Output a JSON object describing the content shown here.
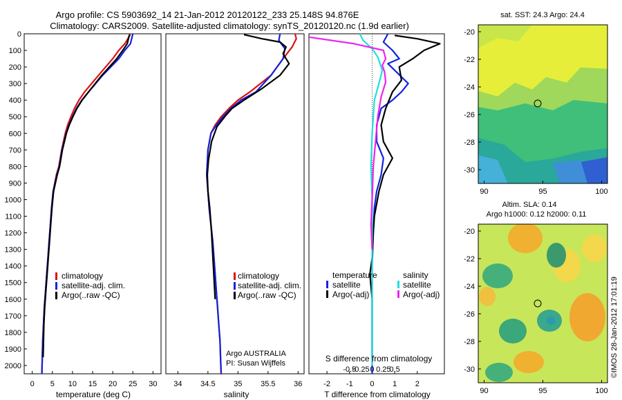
{
  "figure": {
    "title_line1": "Argo profile: CS 5903692_14 21-Jan-2012 20120122_233 25.148S 94.876E",
    "title_line2": "Climatology: CARS2009. Satellite-adjusted climatology: synTS_20120120.nc (1.9d earlier)",
    "credit": "©IMOS 28-Jan-2012 17:01:19"
  },
  "colors": {
    "climatology": "#dd1111",
    "satellite": "#1122dd",
    "argo": "#000000",
    "sal_satellite": "#22dddd",
    "sal_argo": "#ee22ee"
  },
  "depth_axis": {
    "range": [
      0,
      2050
    ],
    "ticks": [
      0,
      100,
      200,
      300,
      400,
      500,
      600,
      700,
      800,
      900,
      1000,
      1100,
      1200,
      1300,
      1400,
      1500,
      1600,
      1700,
      1800,
      1900,
      2000
    ]
  },
  "chart_data": [
    {
      "type": "line",
      "xlabel": "temperature (deg C)",
      "xlim": [
        -2,
        32
      ],
      "ylim": [
        2050,
        0
      ],
      "xticks": [
        0,
        5,
        10,
        15,
        20,
        25,
        30
      ],
      "legend": [
        "climatology",
        "satellite-adj. clim.",
        "Argo(..raw -QC)"
      ],
      "series": [
        {
          "name": "climatology",
          "color": "#dd1111",
          "x": [
            24.2,
            24.0,
            23.0,
            21.5,
            20.0,
            16.5,
            13.0,
            11.6,
            10.5,
            9.6,
            8.8,
            8.2,
            7.3,
            6.6,
            6.0,
            5.2,
            4.8,
            4.5,
            4.2,
            3.9,
            3.6,
            3.3,
            3.0,
            2.8,
            2.6,
            2.4
          ],
          "y": [
            0,
            20,
            60,
            100,
            150,
            250,
            350,
            400,
            450,
            500,
            550,
            600,
            700,
            800,
            850,
            950,
            1050,
            1150,
            1250,
            1350,
            1450,
            1550,
            1650,
            1750,
            1850,
            2050
          ]
        },
        {
          "name": "satellite-adj. clim.",
          "color": "#1122dd",
          "x": [
            25.0,
            24.8,
            24.4,
            23.0,
            21.5,
            17.5,
            14.0,
            12.3,
            11.0,
            10.0,
            9.1,
            8.4,
            7.4,
            6.7,
            6.1,
            5.2,
            4.8,
            4.5,
            4.2,
            3.9,
            3.6,
            3.3,
            3.0,
            2.8,
            2.6,
            2.4
          ],
          "y": [
            0,
            20,
            60,
            100,
            150,
            250,
            350,
            400,
            450,
            500,
            550,
            600,
            700,
            800,
            850,
            950,
            1050,
            1150,
            1250,
            1350,
            1450,
            1550,
            1650,
            1750,
            1850,
            2050
          ]
        },
        {
          "name": "Argo(..raw -QC)",
          "color": "#000000",
          "x": [
            24.3,
            24.0,
            23.6,
            22.5,
            21.0,
            17.3,
            14.0,
            12.4,
            11.1,
            10.1,
            9.2,
            8.5,
            7.5,
            6.8,
            6.2,
            5.3,
            4.9,
            4.6,
            4.3,
            4.0,
            3.7,
            3.4,
            3.1,
            2.9,
            2.7
          ],
          "y": [
            5,
            20,
            60,
            100,
            150,
            250,
            350,
            400,
            450,
            500,
            550,
            600,
            700,
            800,
            850,
            950,
            1050,
            1150,
            1250,
            1350,
            1450,
            1550,
            1650,
            1750,
            1950
          ]
        }
      ]
    },
    {
      "type": "line",
      "xlabel": "salinity",
      "xlim": [
        33.8,
        36.1
      ],
      "ylim": [
        2050,
        0
      ],
      "xticks": [
        34,
        34.5,
        35,
        35.5,
        36
      ],
      "legend": [
        "climatology",
        "satellite-adj. clim.",
        "Argo(..raw -QC)"
      ],
      "annotation": [
        "Argo AUSTRALIA",
        "PI: Susan Wijffels"
      ],
      "series": [
        {
          "name": "climatology",
          "color": "#dd1111",
          "x": [
            35.95,
            35.97,
            35.9,
            35.75,
            35.55,
            35.2,
            35.0,
            34.85,
            34.72,
            34.62,
            34.55,
            34.5,
            34.48,
            34.5,
            34.52,
            34.55,
            34.58,
            34.6,
            34.62,
            34.64,
            34.66,
            34.68,
            34.7,
            34.71,
            34.72,
            34.73
          ],
          "y": [
            0,
            30,
            80,
            150,
            250,
            350,
            400,
            450,
            500,
            550,
            600,
            700,
            850,
            950,
            1050,
            1150,
            1250,
            1350,
            1450,
            1550,
            1650,
            1750,
            1850,
            1950,
            2050,
            2050
          ]
        },
        {
          "name": "satellite-adj. clim.",
          "color": "#1122dd",
          "x": [
            35.7,
            35.68,
            35.78,
            35.75,
            35.55,
            35.3,
            35.05,
            34.88,
            34.75,
            34.64,
            34.55,
            34.5,
            34.48,
            34.5,
            34.52,
            34.55,
            34.58,
            34.6,
            34.62,
            34.64,
            34.66,
            34.68,
            34.7,
            34.71,
            34.72
          ],
          "y": [
            0,
            40,
            90,
            150,
            250,
            350,
            400,
            450,
            500,
            550,
            600,
            700,
            850,
            950,
            1050,
            1150,
            1250,
            1350,
            1450,
            1550,
            1650,
            1750,
            1850,
            1950,
            2050
          ]
        },
        {
          "name": "Argo(..raw -QC)",
          "color": "#000000",
          "x": [
            35.1,
            35.4,
            35.7,
            35.8,
            35.75,
            35.85,
            35.7,
            35.4,
            35.1,
            34.9,
            34.78,
            34.65,
            34.56,
            34.51,
            34.49,
            34.5,
            34.53,
            34.56,
            34.59,
            34.62
          ],
          "y": [
            5,
            30,
            50,
            80,
            120,
            180,
            250,
            330,
            400,
            450,
            500,
            560,
            650,
            760,
            850,
            950,
            1050,
            1200,
            1400,
            1600
          ]
        }
      ]
    },
    {
      "type": "line",
      "xlabel": "T difference from climatology",
      "xlim": [
        -2.8,
        3.2
      ],
      "ylim": [
        2050,
        0
      ],
      "xticks": [
        -2,
        -1,
        0,
        1,
        2
      ],
      "top_axis_label": "S difference from climatology",
      "top_ticks": [
        -0.5,
        -0.25,
        0,
        0.25,
        0.5
      ],
      "legend_titles": [
        "temperature",
        "salinity"
      ],
      "legend": [
        "satellite",
        "Argo(-adj)",
        "satellite",
        "Argo(-adj)"
      ],
      "series": [
        {
          "name": "satellite",
          "group": "temperature",
          "color": "#1122dd",
          "x": [
            0.7,
            0.5,
            0.9,
            1.2,
            0.7,
            1.6,
            1.3,
            0.9,
            0.4,
            0.2,
            0.2,
            0.5,
            0.4,
            0.2,
            0.1,
            0.05,
            0.0,
            0.0,
            0.0,
            0.0,
            0.0,
            0.0
          ],
          "y": [
            0,
            50,
            100,
            150,
            180,
            300,
            350,
            400,
            450,
            550,
            650,
            750,
            850,
            950,
            1050,
            1200,
            1400,
            1550,
            1700,
            1850,
            1950,
            2050
          ]
        },
        {
          "name": "Argo(-adj)",
          "group": "temperature",
          "color": "#000000",
          "x": [
            1.0,
            2.0,
            3.0,
            2.3,
            1.8,
            1.2,
            1.3,
            0.9,
            0.6,
            0.4,
            0.5,
            0.9,
            0.5,
            0.3,
            0.1,
            0.05,
            0.0,
            -0.1,
            0.0,
            0.0
          ],
          "y": [
            10,
            30,
            60,
            100,
            150,
            200,
            280,
            350,
            450,
            550,
            650,
            750,
            850,
            950,
            1100,
            1200,
            1350,
            1450,
            1600,
            1950
          ]
        },
        {
          "name": "satellite",
          "group": "salinity",
          "color": "#22dddd",
          "x": [
            -0.55,
            -0.4,
            0.0,
            0.25,
            0.45,
            0.3,
            0.1,
            0.0,
            -0.05,
            0.0,
            0.0,
            0.0,
            0.0,
            0.0,
            0.0
          ],
          "y": [
            0,
            40,
            90,
            140,
            220,
            300,
            400,
            600,
            800,
            1000,
            1200,
            1400,
            1600,
            1800,
            2000
          ]
        },
        {
          "name": "Argo(-adj)",
          "group": "salinity",
          "color": "#ee22ee",
          "x": [
            -2.8,
            -0.8,
            0.5,
            0.6,
            0.45,
            0.55,
            0.6,
            0.4,
            0.25,
            0.15,
            0.05,
            0.0,
            -0.05,
            0.0
          ],
          "y": [
            20,
            60,
            100,
            150,
            190,
            230,
            290,
            380,
            500,
            650,
            800,
            1000,
            1150,
            1300
          ]
        }
      ]
    },
    {
      "type": "heatmap",
      "title": "sat. SST: 24.3  Argo: 24.4",
      "xlim": [
        89.5,
        100.5
      ],
      "ylim": [
        -31,
        -19.5
      ],
      "xticks": [
        90,
        95,
        100
      ],
      "yticks": [
        -20,
        -22,
        -24,
        -26,
        -28,
        -30
      ],
      "marker": {
        "lon": 94.876,
        "lat": -25.148
      }
    },
    {
      "type": "heatmap",
      "title": "Altim. SLA: 0.14",
      "subtitle": "Argo h1000: 0.12  h2000: 0.11",
      "xlim": [
        89.5,
        100.5
      ],
      "ylim": [
        -31,
        -19.5
      ],
      "xticks": [
        90,
        95,
        100
      ],
      "yticks": [
        -20,
        -22,
        -24,
        -26,
        -28,
        -30
      ],
      "marker": {
        "lon": 94.876,
        "lat": -25.148
      }
    }
  ]
}
